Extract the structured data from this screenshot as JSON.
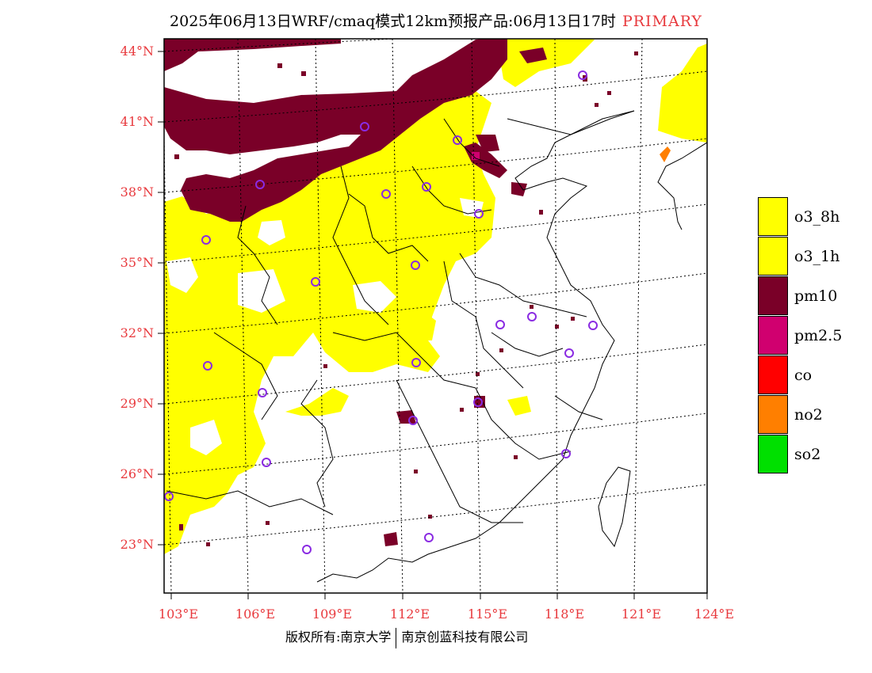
{
  "header": {
    "title": "2025年06月13日WRF/cmaq模式12km预报产品:06月13日17时",
    "tag": "PRIMARY"
  },
  "map": {
    "lat_labels": [
      "44°N",
      "41°N",
      "38°N",
      "35°N",
      "32°N",
      "29°N",
      "26°N",
      "23°N"
    ],
    "lon_labels": [
      "103°E",
      "106°E",
      "109°E",
      "112°E",
      "115°E",
      "118°E",
      "121°E",
      "124°E"
    ]
  },
  "legend": {
    "items": [
      {
        "label": "o3_8h",
        "color": "#ffff00"
      },
      {
        "label": "o3_1h",
        "color": "#ffff00"
      },
      {
        "label": "pm10",
        "color": "#7a0028"
      },
      {
        "label": "pm2.5",
        "color": "#d0006f"
      },
      {
        "label": "co",
        "color": "#ff0000"
      },
      {
        "label": "no2",
        "color": "#ff7f00"
      },
      {
        "label": "so2",
        "color": "#00e000"
      }
    ]
  },
  "footer": {
    "left": "版权所有:南京大学",
    "right": "南京创蓝科技有限公司"
  },
  "colors": {
    "axis_label": "#e8393d",
    "ozone": "#ffff00",
    "pm10": "#7a0028",
    "station_marker": "#8a2be2"
  }
}
